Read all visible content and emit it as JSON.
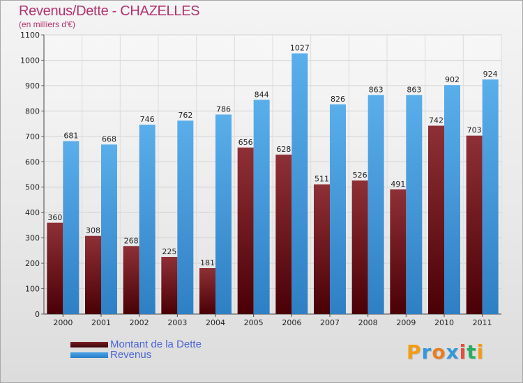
{
  "title": "Revenus/Dette - CHAZELLES",
  "subtitle": "(en milliers d'€)",
  "logo": {
    "letters": [
      "P",
      "r",
      "o",
      "x",
      "i",
      "t",
      "i"
    ],
    "colors": [
      "#f39c12",
      "#3498db",
      "#e67e22",
      "#3498db",
      "#e74c3c",
      "#27ae60",
      "#f39c12"
    ]
  },
  "chart_data": {
    "type": "bar",
    "categories": [
      "2000",
      "2001",
      "2002",
      "2003",
      "2004",
      "2005",
      "2006",
      "2007",
      "2008",
      "2009",
      "2010",
      "2011"
    ],
    "series": [
      {
        "name": "Montant de la Dette",
        "color": "#7a1f24",
        "values": [
          360,
          308,
          268,
          225,
          181,
          656,
          628,
          511,
          526,
          491,
          742,
          703
        ]
      },
      {
        "name": "Revenus",
        "color": "#4aa3e6",
        "values": [
          681,
          668,
          746,
          762,
          786,
          844,
          1027,
          826,
          863,
          863,
          902,
          924
        ]
      }
    ],
    "ylim": [
      0,
      1100
    ],
    "yticks": [
      0,
      100,
      200,
      300,
      400,
      500,
      600,
      700,
      800,
      900,
      1000,
      1100
    ],
    "grid": true,
    "legend": "bottom-left"
  }
}
